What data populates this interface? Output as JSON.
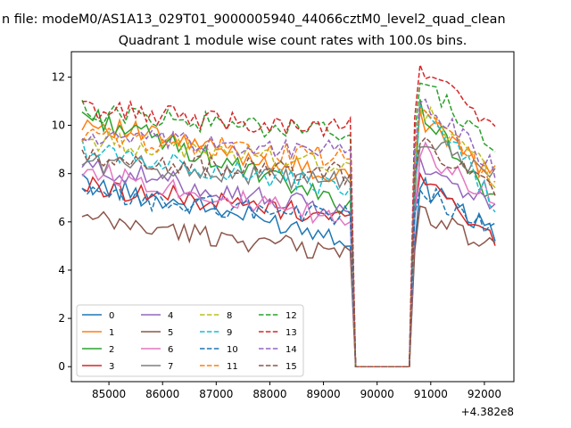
{
  "figure": {
    "suptitle": "n file: modeM0/AS1A13_029T01_9000005940_44066cztM0_level2_quad_clean",
    "offset_label": "+4.382e8"
  },
  "chart_data": {
    "type": "line",
    "title": "Quadrant 1 module wise count rates with 100.0s bins.",
    "xlabel": "",
    "ylabel": "",
    "xlim": [
      84300,
      92550
    ],
    "ylim": [
      -0.62,
      13.05
    ],
    "grid": false,
    "legend_position": "lower-left",
    "x_ticks": [
      {
        "value": 85000,
        "label": "85000"
      },
      {
        "value": 86000,
        "label": "86000"
      },
      {
        "value": 87000,
        "label": "87000"
      },
      {
        "value": 88000,
        "label": "88000"
      },
      {
        "value": 89000,
        "label": "89000"
      },
      {
        "value": 90000,
        "label": "90000"
      },
      {
        "value": 91000,
        "label": "91000"
      },
      {
        "value": 92000,
        "label": "92000"
      }
    ],
    "y_ticks": [
      {
        "value": 0,
        "label": "0"
      },
      {
        "value": 2,
        "label": "2"
      },
      {
        "value": 4,
        "label": "4"
      },
      {
        "value": 6,
        "label": "6"
      },
      {
        "value": 8,
        "label": "8"
      },
      {
        "value": 10,
        "label": "10"
      },
      {
        "value": 12,
        "label": "12"
      }
    ],
    "x_segments": [
      {
        "start": 84500,
        "end": 89400
      },
      {
        "start": 89500,
        "end": 89500
      },
      {
        "start": 89600,
        "end": 90600
      },
      {
        "start": 90700,
        "end": 90700
      },
      {
        "start": 90800,
        "end": 92200
      }
    ],
    "series": [
      {
        "name": "0",
        "color": "#1f77b4",
        "dash": "solid",
        "seg": [
          [
            7.6,
            5.4
          ],
          [
            5.0
          ],
          [
            0.0,
            0.0
          ],
          [
            5.0
          ],
          [
            7.5,
            5.6
          ]
        ]
      },
      {
        "name": "1",
        "color": "#ff7f0e",
        "dash": "solid",
        "seg": [
          [
            10.2,
            7.8
          ],
          [
            7.8
          ],
          [
            0.0,
            0.0
          ],
          [
            7.8
          ],
          [
            10.3,
            7.9
          ]
        ]
      },
      {
        "name": "2",
        "color": "#2ca02c",
        "dash": "solid",
        "seg": [
          [
            10.5,
            6.7
          ],
          [
            6.9
          ],
          [
            0.0,
            0.0
          ],
          [
            6.9
          ],
          [
            10.7,
            6.8
          ]
        ]
      },
      {
        "name": "3",
        "color": "#d62728",
        "dash": "solid",
        "seg": [
          [
            7.5,
            6.2
          ],
          [
            6.3
          ],
          [
            0.0,
            0.0
          ],
          [
            6.3
          ],
          [
            7.7,
            5.4
          ]
        ]
      },
      {
        "name": "4",
        "color": "#9467bd",
        "dash": "solid",
        "seg": [
          [
            8.3,
            6.4
          ],
          [
            6.4
          ],
          [
            0.0,
            0.0
          ],
          [
            6.4
          ],
          [
            8.4,
            6.5
          ]
        ]
      },
      {
        "name": "5",
        "color": "#8c564b",
        "dash": "solid",
        "seg": [
          [
            6.1,
            4.7
          ],
          [
            4.8
          ],
          [
            0.0,
            0.0
          ],
          [
            4.8
          ],
          [
            6.4,
            4.9
          ]
        ]
      },
      {
        "name": "6",
        "color": "#e377c2",
        "dash": "solid",
        "seg": [
          [
            8.2,
            6.0
          ],
          [
            6.0
          ],
          [
            0.0,
            0.0
          ],
          [
            6.0
          ],
          [
            9.0,
            7.0
          ]
        ]
      },
      {
        "name": "7",
        "color": "#7f7f7f",
        "dash": "solid",
        "seg": [
          [
            8.5,
            7.6
          ],
          [
            7.6
          ],
          [
            0.0,
            0.0
          ],
          [
            7.6
          ],
          [
            9.5,
            7.9
          ]
        ]
      },
      {
        "name": "8",
        "color": "#bcbd22",
        "dash": "dashed",
        "seg": [
          [
            9.4,
            8.4
          ],
          [
            8.4
          ],
          [
            0.0,
            0.0
          ],
          [
            8.4
          ],
          [
            10.8,
            7.8
          ]
        ]
      },
      {
        "name": "9",
        "color": "#17becf",
        "dash": "dashed",
        "seg": [
          [
            9.0,
            7.4
          ],
          [
            7.4
          ],
          [
            0.0,
            0.0
          ],
          [
            7.4
          ],
          [
            11.2,
            6.8
          ]
        ]
      },
      {
        "name": "10",
        "color": "#1f77b4",
        "dash": "dashed",
        "seg": [
          [
            7.1,
            6.2
          ],
          [
            6.3
          ],
          [
            0.0,
            0.0
          ],
          [
            6.3
          ],
          [
            7.4,
            5.6
          ]
        ]
      },
      {
        "name": "11",
        "color": "#ff7f0e",
        "dash": "dashed",
        "seg": [
          [
            9.6,
            8.6
          ],
          [
            8.6
          ],
          [
            0.0,
            0.0
          ],
          [
            8.6
          ],
          [
            10.9,
            7.6
          ]
        ]
      },
      {
        "name": "12",
        "color": "#2ca02c",
        "dash": "dashed",
        "seg": [
          [
            10.6,
            9.6
          ],
          [
            9.6
          ],
          [
            0.0,
            0.0
          ],
          [
            9.6
          ],
          [
            11.9,
            8.9
          ]
        ]
      },
      {
        "name": "13",
        "color": "#d62728",
        "dash": "dashed",
        "seg": [
          [
            10.7,
            9.8
          ],
          [
            10.3
          ],
          [
            0.0,
            0.0
          ],
          [
            10.3
          ],
          [
            12.4,
            10.0
          ]
        ]
      },
      {
        "name": "14",
        "color": "#9467bd",
        "dash": "dashed",
        "seg": [
          [
            9.5,
            8.9
          ],
          [
            9.0
          ],
          [
            0.0,
            0.0
          ],
          [
            9.0
          ],
          [
            11.1,
            8.2
          ]
        ]
      },
      {
        "name": "15",
        "color": "#8c564b",
        "dash": "dashed",
        "seg": [
          [
            8.6,
            8.0
          ],
          [
            8.0
          ],
          [
            0.0,
            0.0
          ],
          [
            8.0
          ],
          [
            9.3,
            7.5
          ]
        ]
      }
    ]
  }
}
